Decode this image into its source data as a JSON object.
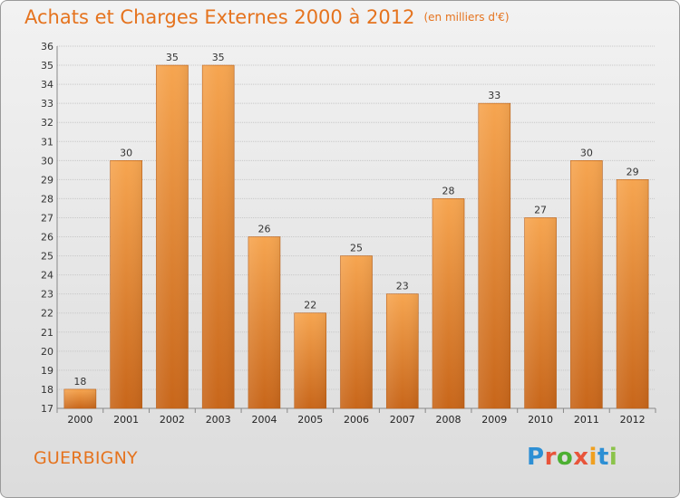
{
  "title": "Achats et Charges Externes 2000 à 2012",
  "unit": "(en milliers d'€)",
  "commune": "GUERBIGNY",
  "logo": {
    "letters": [
      "P",
      "r",
      "o",
      "x",
      "i",
      "t",
      "i"
    ],
    "colors": [
      "#2d8fd4",
      "#e8543a",
      "#4caf32",
      "#e8543a",
      "#f0a020",
      "#2d8fd4",
      "#8bc34a"
    ]
  },
  "chart_data": {
    "type": "bar",
    "categories": [
      "2000",
      "2001",
      "2002",
      "2003",
      "2004",
      "2005",
      "2006",
      "2007",
      "2008",
      "2009",
      "2010",
      "2011",
      "2012"
    ],
    "values": [
      18,
      30,
      35,
      35,
      26,
      22,
      25,
      23,
      28,
      33,
      27,
      30,
      29
    ],
    "ylim": [
      17,
      36
    ],
    "yticks": [
      17,
      18,
      19,
      20,
      21,
      22,
      23,
      24,
      25,
      26,
      27,
      28,
      29,
      30,
      31,
      32,
      33,
      34,
      35,
      36
    ],
    "grid": true,
    "bar_color": "#f0923a"
  }
}
